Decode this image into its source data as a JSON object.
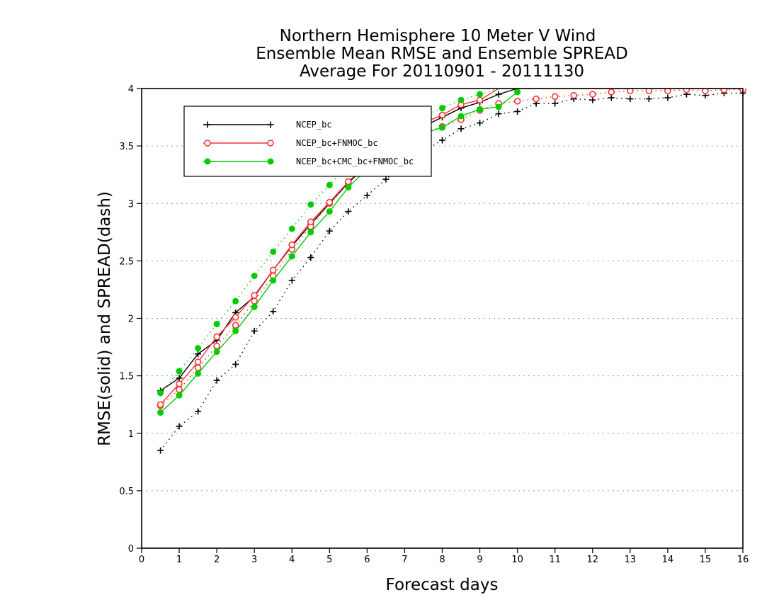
{
  "chart_data": {
    "type": "line",
    "title_lines": [
      "Northern Hemisphere 10 Meter V Wind",
      "Ensemble Mean RMSE and Ensemble SPREAD",
      "Average For 20110901 - 20111130"
    ],
    "xlabel": "Forecast days",
    "ylabel": "RMSE(solid) and SPREAD(dash)",
    "xlim": [
      0,
      16
    ],
    "ylim": [
      0,
      4
    ],
    "xticks": [
      "0",
      "1",
      "2",
      "3",
      "4",
      "5",
      "6",
      "7",
      "8",
      "9",
      "10",
      "11",
      "12",
      "13",
      "14",
      "15",
      "16"
    ],
    "yticks": [
      "0",
      "0.5",
      "1",
      "1.5",
      "2",
      "2.5",
      "3",
      "3.5",
      "4"
    ],
    "grid": true,
    "legend_position": "top-left",
    "x": [
      0.5,
      1,
      1.5,
      2,
      2.5,
      3,
      3.5,
      4,
      4.5,
      5,
      5.5,
      6,
      6.5,
      7,
      7.5,
      8,
      8.5,
      9,
      9.5,
      10,
      10.5,
      11,
      11.5,
      12,
      12.5,
      13,
      13.5,
      14,
      14.5,
      15,
      15.5,
      16
    ],
    "series": [
      {
        "name": "NCEP_bc",
        "color": "#000000",
        "marker": "plus",
        "rmse": [
          1.37,
          1.48,
          1.69,
          1.81,
          2.05,
          2.19,
          2.42,
          2.63,
          2.82,
          3.0,
          3.18,
          3.33,
          3.47,
          3.58,
          3.67,
          3.75,
          3.83,
          3.88,
          3.95,
          4.0,
          4.0,
          4.0,
          4.0,
          4.0,
          4.0,
          4.0,
          4.0,
          4.0,
          4.0,
          4.0,
          4.0,
          4.0
        ],
        "spread": [
          0.85,
          1.06,
          1.19,
          1.46,
          1.6,
          1.89,
          2.06,
          2.33,
          2.53,
          2.76,
          2.93,
          3.07,
          3.21,
          3.34,
          3.46,
          3.55,
          3.65,
          3.7,
          3.78,
          3.8,
          3.87,
          3.87,
          3.91,
          3.9,
          3.92,
          3.91,
          3.91,
          3.92,
          3.95,
          3.94,
          3.96,
          3.96
        ]
      },
      {
        "name": "NCEP_bc+FNMOC_bc",
        "color": "#ff3333",
        "marker": "open-circle",
        "rmse": [
          1.25,
          1.43,
          1.62,
          1.84,
          2.01,
          2.2,
          2.42,
          2.64,
          2.84,
          3.01,
          3.19,
          3.34,
          3.48,
          3.6,
          3.7,
          3.77,
          3.86,
          3.9,
          4.0,
          4.0,
          4.0,
          4.0,
          4.0,
          4.0,
          4.0,
          4.0,
          4.0,
          4.0,
          4.0,
          4.0,
          4.0,
          4.0
        ],
        "spread": [
          1.24,
          1.38,
          1.57,
          1.76,
          1.94,
          2.15,
          2.37,
          2.6,
          2.8,
          3.0,
          3.18,
          3.34,
          3.44,
          3.54,
          3.61,
          3.67,
          3.73,
          3.81,
          3.87,
          3.89,
          3.91,
          3.93,
          3.94,
          3.95,
          3.97,
          3.98,
          3.98,
          3.98,
          3.99,
          3.98,
          3.99,
          3.99
        ]
      },
      {
        "name": "NCEP_bc+CMC_bc+FNMOC_bc",
        "color": "#00cc00",
        "marker": "filled-circle",
        "rmse": [
          1.18,
          1.33,
          1.52,
          1.71,
          1.89,
          2.1,
          2.33,
          2.54,
          2.75,
          2.93,
          3.14,
          3.3,
          3.43,
          3.53,
          3.61,
          3.66,
          3.76,
          3.82,
          3.84,
          3.97
        ],
        "spread": [
          1.35,
          1.54,
          1.74,
          1.95,
          2.15,
          2.37,
          2.58,
          2.78,
          2.99,
          3.16,
          3.33,
          3.47,
          3.6,
          3.69,
          3.76,
          3.83,
          3.9,
          3.95,
          4.0,
          4.0
        ]
      }
    ]
  }
}
